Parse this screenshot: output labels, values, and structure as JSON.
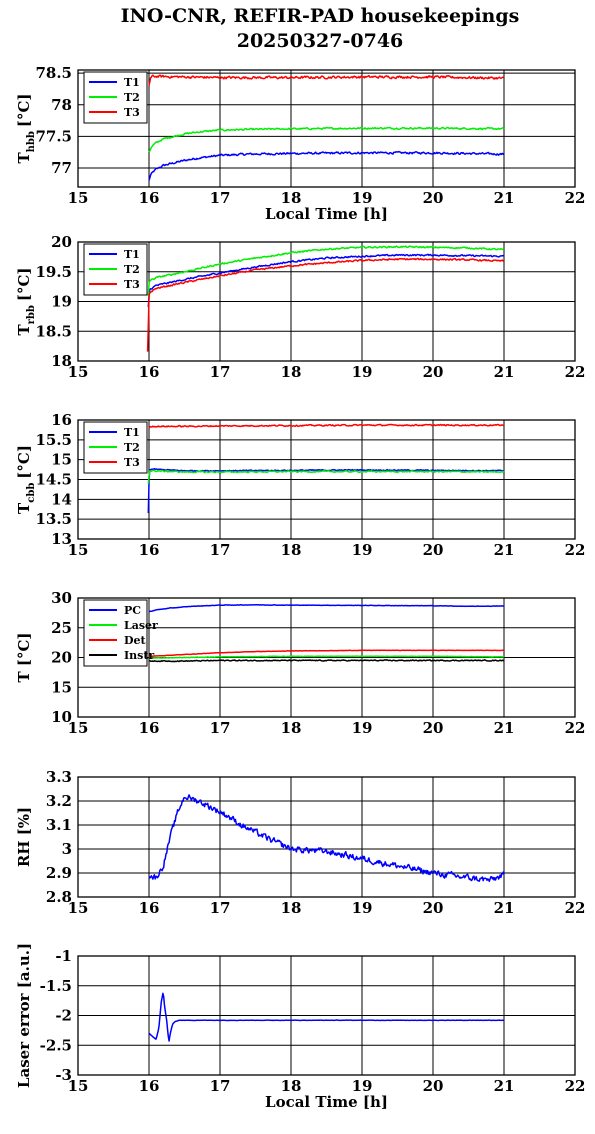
{
  "title_line1": "INO-CNR, REFIR-PAD housekeepings",
  "title_line2": "20250327-0746",
  "chart_data": [
    {
      "type": "line",
      "ylabel_main": "T",
      "ylabel_sub": "hbb",
      "ylabel_unit": "[°C]",
      "xlabel": "Local Time [h]",
      "xlim": [
        15,
        22
      ],
      "ylim": [
        76.7,
        78.55
      ],
      "xticks": [
        "15",
        "16",
        "17",
        "18",
        "19",
        "20",
        "21",
        "22"
      ],
      "yticks": [
        "78.5",
        "78",
        "77.5",
        "77"
      ],
      "ytick_values": [
        78.5,
        78,
        77.5,
        77
      ],
      "series": [
        {
          "name": "T1",
          "color": "#0000ff",
          "noise": 0.025,
          "x": [
            16.0,
            16.02,
            16.05,
            16.1,
            16.2,
            16.35,
            16.5,
            16.7,
            17.0,
            17.4,
            18.0,
            19.0,
            20.0,
            21.0
          ],
          "y": [
            76.8,
            76.88,
            76.93,
            76.98,
            77.04,
            77.08,
            77.12,
            77.16,
            77.2,
            77.22,
            77.23,
            77.24,
            77.24,
            77.22
          ]
        },
        {
          "name": "T2",
          "color": "#00ee00",
          "noise": 0.02,
          "x": [
            16.0,
            16.02,
            16.05,
            16.1,
            16.2,
            16.35,
            16.5,
            16.7,
            17.0,
            17.4,
            18.0,
            19.0,
            20.0,
            21.0
          ],
          "y": [
            77.25,
            77.3,
            77.35,
            77.4,
            77.46,
            77.5,
            77.54,
            77.57,
            77.6,
            77.61,
            77.62,
            77.63,
            77.63,
            77.62
          ]
        },
        {
          "name": "T3",
          "color": "#ff0000",
          "noise": 0.03,
          "x": [
            16.0,
            16.02,
            16.05,
            16.5,
            17.0,
            18.0,
            19.0,
            20.0,
            21.0
          ],
          "y": [
            78.3,
            78.42,
            78.45,
            78.44,
            78.43,
            78.43,
            78.44,
            78.44,
            78.42
          ]
        }
      ]
    },
    {
      "type": "line",
      "ylabel_main": "T",
      "ylabel_sub": "rbb",
      "ylabel_unit": "[°C]",
      "xlabel": "",
      "xlim": [
        15,
        22
      ],
      "ylim": [
        18,
        20
      ],
      "xticks": [
        "15",
        "16",
        "17",
        "18",
        "19",
        "20",
        "21",
        "22"
      ],
      "yticks": [
        "20",
        "19.5",
        "19",
        "18.5",
        "18"
      ],
      "ytick_values": [
        20,
        19.5,
        19,
        18.5,
        18
      ],
      "series": [
        {
          "name": "T1",
          "color": "#0000ff",
          "noise": 0.02,
          "x": [
            15.99,
            16.0,
            16.01,
            16.1,
            16.5,
            17.0,
            17.5,
            18.0,
            18.5,
            19.0,
            19.5,
            20.0,
            20.5,
            21.0
          ],
          "y": [
            18.9,
            19.1,
            19.2,
            19.27,
            19.37,
            19.48,
            19.58,
            19.67,
            19.73,
            19.76,
            19.78,
            19.78,
            19.77,
            19.76
          ]
        },
        {
          "name": "T2",
          "color": "#00ee00",
          "noise": 0.02,
          "x": [
            15.99,
            16.0,
            16.01,
            16.1,
            16.5,
            17.0,
            17.5,
            18.0,
            18.5,
            19.0,
            19.5,
            20.0,
            20.5,
            21.0
          ],
          "y": [
            19.1,
            19.3,
            19.35,
            19.4,
            19.5,
            19.63,
            19.73,
            19.82,
            19.88,
            19.91,
            19.92,
            19.91,
            19.9,
            19.87
          ]
        },
        {
          "name": "T3",
          "color": "#ff0000",
          "noise": 0.02,
          "x": [
            15.98,
            15.99,
            16.0,
            16.01,
            16.1,
            16.5,
            17.0,
            17.5,
            18.0,
            18.5,
            19.0,
            19.5,
            20.0,
            20.5,
            21.0
          ],
          "y": [
            18.15,
            18.6,
            19.1,
            19.15,
            19.22,
            19.32,
            19.43,
            19.53,
            19.6,
            19.65,
            19.69,
            19.71,
            19.71,
            19.7,
            19.68
          ]
        }
      ]
    },
    {
      "type": "line",
      "ylabel_main": "T",
      "ylabel_sub": "cbb",
      "ylabel_unit": "[°C]",
      "xlabel": "",
      "xlim": [
        15,
        22
      ],
      "ylim": [
        13,
        16
      ],
      "xticks": [
        "15",
        "16",
        "17",
        "18",
        "19",
        "20",
        "21",
        "22"
      ],
      "yticks": [
        "16",
        "15.5",
        "15",
        "14.5",
        "14",
        "13.5",
        "13"
      ],
      "ytick_values": [
        16,
        15.5,
        15,
        14.5,
        14,
        13.5,
        13
      ],
      "series": [
        {
          "name": "T1",
          "color": "#0000ff",
          "noise": 0.02,
          "x": [
            15.99,
            16.0,
            16.01,
            16.05,
            16.5,
            17.0,
            18.0,
            19.0,
            20.0,
            21.0
          ],
          "y": [
            13.65,
            14.5,
            14.75,
            14.76,
            14.72,
            14.72,
            14.73,
            14.74,
            14.73,
            14.72
          ]
        },
        {
          "name": "T2",
          "color": "#00ee00",
          "noise": 0.025,
          "x": [
            15.99,
            16.0,
            16.01,
            16.05,
            16.5,
            17.0,
            18.0,
            19.0,
            20.0,
            21.0
          ],
          "y": [
            14.4,
            14.6,
            14.72,
            14.72,
            14.69,
            14.69,
            14.7,
            14.7,
            14.7,
            14.69
          ]
        },
        {
          "name": "T3",
          "color": "#ff0000",
          "noise": 0.025,
          "x": [
            16.0,
            16.02,
            16.5,
            17.0,
            18.0,
            19.0,
            20.0,
            21.0
          ],
          "y": [
            15.8,
            15.84,
            15.84,
            15.85,
            15.86,
            15.87,
            15.87,
            15.87
          ]
        }
      ]
    },
    {
      "type": "line",
      "ylabel_main": "T [°C]",
      "ylabel_sub": "",
      "ylabel_unit": "",
      "xlabel": "",
      "xlim": [
        15,
        22
      ],
      "ylim": [
        10,
        30
      ],
      "xticks": [
        "15",
        "16",
        "17",
        "18",
        "19",
        "20",
        "21",
        "22"
      ],
      "yticks": [
        "30",
        "25",
        "20",
        "15",
        "10"
      ],
      "ytick_values": [
        30,
        25,
        20,
        15,
        10
      ],
      "series": [
        {
          "name": "PC",
          "color": "#0000ff",
          "noise": 0.05,
          "x": [
            16.0,
            16.1,
            16.3,
            16.6,
            17.0,
            17.5,
            18.0,
            19.0,
            20.0,
            20.5,
            21.0
          ],
          "y": [
            27.7,
            28.0,
            28.3,
            28.6,
            28.8,
            28.85,
            28.8,
            28.75,
            28.7,
            28.6,
            28.65
          ]
        },
        {
          "name": "Laser",
          "color": "#00ee00",
          "noise": 0.05,
          "x": [
            16.0,
            16.5,
            17.0,
            18.0,
            19.0,
            20.0,
            21.0
          ],
          "y": [
            19.9,
            20.0,
            20.1,
            20.2,
            20.2,
            20.2,
            20.1
          ]
        },
        {
          "name": "Det",
          "color": "#ff0000",
          "noise": 0.04,
          "x": [
            16.0,
            16.5,
            17.0,
            17.5,
            18.0,
            19.0,
            20.0,
            21.0
          ],
          "y": [
            20.2,
            20.5,
            20.8,
            21.0,
            21.1,
            21.2,
            21.2,
            21.2
          ]
        },
        {
          "name": "Instr",
          "color": "#000000",
          "noise": 0.12,
          "x": [
            16.0,
            16.5,
            17.0,
            18.0,
            19.0,
            20.0,
            21.0
          ],
          "y": [
            19.4,
            19.4,
            19.5,
            19.5,
            19.5,
            19.5,
            19.5
          ]
        }
      ]
    },
    {
      "type": "line",
      "ylabel_main": "RH [%]",
      "ylabel_sub": "",
      "ylabel_unit": "",
      "xlabel": "",
      "xlim": [
        15,
        22
      ],
      "ylim": [
        2.8,
        3.3
      ],
      "xticks": [
        "15",
        "16",
        "17",
        "18",
        "19",
        "20",
        "21",
        "22"
      ],
      "yticks": [
        "3.3",
        "3.2",
        "3.1",
        "3",
        "2.9",
        "2.8"
      ],
      "ytick_values": [
        3.3,
        3.2,
        3.1,
        3.0,
        2.9,
        2.8
      ],
      "series": [
        {
          "name": "RH",
          "color": "#0000ff",
          "noise": 0.02,
          "x": [
            16.0,
            16.1,
            16.2,
            16.3,
            16.4,
            16.5,
            16.7,
            16.9,
            17.1,
            17.3,
            17.5,
            17.7,
            18.0,
            18.5,
            19.0,
            19.5,
            20.0,
            20.5,
            20.8,
            21.0
          ],
          "y": [
            2.89,
            2.88,
            2.93,
            3.05,
            3.15,
            3.22,
            3.2,
            3.17,
            3.14,
            3.1,
            3.07,
            3.04,
            3.0,
            2.99,
            2.96,
            2.93,
            2.9,
            2.88,
            2.87,
            2.89
          ]
        }
      ]
    },
    {
      "type": "line",
      "ylabel_main": "Laser error [a.u.]",
      "ylabel_sub": "",
      "ylabel_unit": "",
      "xlabel": "Local Time [h]",
      "xlim": [
        15,
        22
      ],
      "ylim": [
        -3,
        -1
      ],
      "xticks": [
        "15",
        "16",
        "17",
        "18",
        "19",
        "20",
        "21",
        "22"
      ],
      "yticks": [
        "-1",
        "-1.5",
        "-2",
        "-2.5",
        "-3"
      ],
      "ytick_values": [
        -1,
        -1.5,
        -2,
        -2.5,
        -3
      ],
      "series": [
        {
          "name": "Laser error",
          "color": "#0000ff",
          "noise": 0.005,
          "x": [
            16.0,
            16.05,
            16.1,
            16.14,
            16.17,
            16.2,
            16.22,
            16.25,
            16.28,
            16.3,
            16.33,
            16.37,
            16.42,
            16.5,
            17.0,
            18.0,
            19.0,
            20.0,
            21.0
          ],
          "y": [
            -2.3,
            -2.35,
            -2.4,
            -2.2,
            -1.8,
            -1.6,
            -1.85,
            -2.1,
            -2.45,
            -2.3,
            -2.15,
            -2.1,
            -2.08,
            -2.08,
            -2.08,
            -2.08,
            -2.08,
            -2.08,
            -2.08
          ]
        }
      ]
    }
  ]
}
